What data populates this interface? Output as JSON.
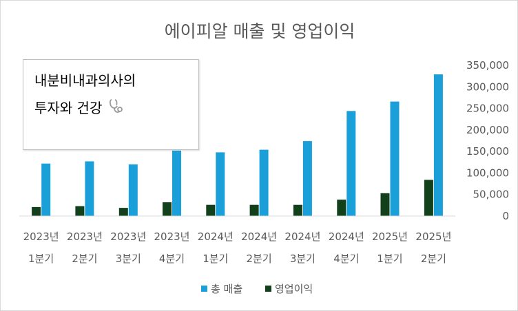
{
  "chart_data": {
    "type": "bar",
    "title": "에이피알 매출 및 영업이익",
    "categories": [
      [
        "2023년",
        "1분기"
      ],
      [
        "2023년",
        "2분기"
      ],
      [
        "2023년",
        "3분기"
      ],
      [
        "2023년",
        "4분기"
      ],
      [
        "2024년",
        "1분기"
      ],
      [
        "2024년",
        "2분기"
      ],
      [
        "2024년",
        "3분기"
      ],
      [
        "2024년",
        "4분기"
      ],
      [
        "2025년",
        "1분기"
      ],
      [
        "2025년",
        "2분기"
      ]
    ],
    "series": [
      {
        "name": "총 매출",
        "color": "#1a9fd9",
        "values": [
          122000,
          127000,
          120000,
          152000,
          148000,
          154000,
          174000,
          244000,
          266000,
          329000
        ]
      },
      {
        "name": "영업이익",
        "color": "#12401a",
        "values": [
          21000,
          23000,
          19000,
          32000,
          26000,
          26000,
          26000,
          38000,
          53000,
          84000
        ]
      }
    ],
    "y_axis": {
      "min": 0,
      "max": 350000,
      "step": 50000,
      "position": "right",
      "tick_labels": [
        "0",
        "50,000",
        "100,000",
        "150,000",
        "200,000",
        "250,000",
        "300,000",
        "350,000"
      ]
    },
    "grid": false,
    "legend": "bottom"
  },
  "textbox": {
    "line1": "내분비내과의사의",
    "line2": "투자와 건강",
    "icon": "stethoscope-icon"
  }
}
